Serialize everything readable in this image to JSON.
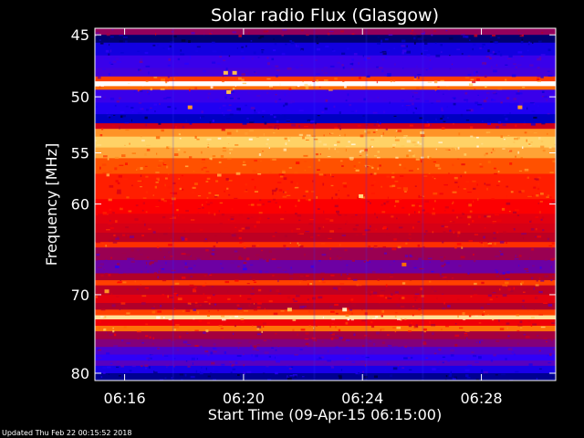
{
  "chart_data": {
    "type": "heatmap",
    "title": "Solar radio Flux (Glasgow)",
    "xlabel": "Start Time (09-Apr-15 06:15:00)",
    "ylabel": "Frequency [MHz]",
    "x_range_minutes": [
      0,
      15.5
    ],
    "x_ticks": [
      {
        "label": "06:16",
        "value": 1
      },
      {
        "label": "06:20",
        "value": 5
      },
      {
        "label": "06:24",
        "value": 9
      },
      {
        "label": "06:28",
        "value": 13
      }
    ],
    "y_range_mhz": [
      44.5,
      81
    ],
    "y_scale": "log",
    "y_ticks": [
      {
        "label": "45",
        "value": 45
      },
      {
        "label": "50",
        "value": 50
      },
      {
        "label": "55",
        "value": 55
      },
      {
        "label": "60",
        "value": 60
      },
      {
        "label": "70",
        "value": 70
      },
      {
        "label": "80",
        "value": 80
      }
    ],
    "colormap": [
      "#000033",
      "#0000c8",
      "#2a00ff",
      "#6a00a8",
      "#b0002a",
      "#ff0000",
      "#ff6a00",
      "#ffd060",
      "#ffffff"
    ],
    "bands": [
      {
        "f0": 44.5,
        "f1": 45.0,
        "level": 0.45
      },
      {
        "f0": 45.0,
        "f1": 45.6,
        "level": 0.05
      },
      {
        "f0": 45.6,
        "f1": 46.6,
        "level": 0.18
      },
      {
        "f0": 46.6,
        "f1": 47.6,
        "level": 0.28
      },
      {
        "f0": 47.6,
        "f1": 48.3,
        "level": 0.3
      },
      {
        "f0": 48.3,
        "f1": 48.7,
        "level": 0.7
      },
      {
        "f0": 48.7,
        "f1": 49.1,
        "level": 1.0
      },
      {
        "f0": 49.1,
        "f1": 49.4,
        "level": 0.75
      },
      {
        "f0": 49.4,
        "f1": 50.5,
        "level": 0.28
      },
      {
        "f0": 50.5,
        "f1": 51.5,
        "level": 0.22
      },
      {
        "f0": 51.5,
        "f1": 52.3,
        "level": 0.12
      },
      {
        "f0": 52.3,
        "f1": 52.8,
        "level": 0.55
      },
      {
        "f0": 52.8,
        "f1": 53.5,
        "level": 0.8
      },
      {
        "f0": 53.5,
        "f1": 54.5,
        "level": 0.88
      },
      {
        "f0": 54.5,
        "f1": 55.5,
        "level": 0.82
      },
      {
        "f0": 55.5,
        "f1": 57.0,
        "level": 0.72
      },
      {
        "f0": 57.0,
        "f1": 59.5,
        "level": 0.66
      },
      {
        "f0": 59.5,
        "f1": 61.0,
        "level": 0.62
      },
      {
        "f0": 61.0,
        "f1": 62.0,
        "level": 0.58
      },
      {
        "f0": 62.0,
        "f1": 63.0,
        "level": 0.56
      },
      {
        "f0": 63.0,
        "f1": 64.0,
        "level": 0.52
      },
      {
        "f0": 64.0,
        "f1": 64.6,
        "level": 0.68
      },
      {
        "f0": 64.6,
        "f1": 66.0,
        "level": 0.46
      },
      {
        "f0": 66.0,
        "f1": 67.5,
        "level": 0.38
      },
      {
        "f0": 67.5,
        "f1": 68.3,
        "level": 0.5
      },
      {
        "f0": 68.3,
        "f1": 68.9,
        "level": 0.7
      },
      {
        "f0": 68.9,
        "f1": 70.0,
        "level": 0.52
      },
      {
        "f0": 70.0,
        "f1": 71.0,
        "level": 0.58
      },
      {
        "f0": 71.0,
        "f1": 71.8,
        "level": 0.5
      },
      {
        "f0": 71.8,
        "f1": 72.5,
        "level": 0.7
      },
      {
        "f0": 72.5,
        "f1": 73.0,
        "level": 0.92
      },
      {
        "f0": 73.0,
        "f1": 73.8,
        "level": 0.6
      },
      {
        "f0": 73.8,
        "f1": 74.5,
        "level": 0.76
      },
      {
        "f0": 74.5,
        "f1": 75.5,
        "level": 0.48
      },
      {
        "f0": 75.5,
        "f1": 76.5,
        "level": 0.42
      },
      {
        "f0": 76.5,
        "f1": 77.5,
        "level": 0.32
      },
      {
        "f0": 77.5,
        "f1": 78.3,
        "level": 0.26
      },
      {
        "f0": 78.3,
        "f1": 79.0,
        "level": 0.34
      },
      {
        "f0": 79.0,
        "f1": 80.0,
        "level": 0.2
      },
      {
        "f0": 80.0,
        "f1": 81.0,
        "level": 0.08
      }
    ],
    "bursts": [
      {
        "t": 8.95,
        "f": 59.2,
        "level": 0.9
      },
      {
        "t": 10.45,
        "f": 58.5,
        "level": 0.7
      },
      {
        "t": 10.4,
        "f": 66.5,
        "level": 0.75
      },
      {
        "t": 8.4,
        "f": 71.8,
        "level": 0.95
      },
      {
        "t": 6.55,
        "f": 71.8,
        "level": 0.85
      },
      {
        "t": 4.4,
        "f": 48.0,
        "level": 0.85
      },
      {
        "t": 4.7,
        "f": 48.0,
        "level": 0.85
      },
      {
        "t": 4.5,
        "f": 49.6,
        "level": 0.85
      },
      {
        "t": 3.2,
        "f": 50.9,
        "level": 0.8
      },
      {
        "t": 14.3,
        "f": 50.9,
        "level": 0.8
      },
      {
        "t": 0.4,
        "f": 69.6,
        "level": 0.8
      }
    ]
  },
  "footer": {
    "updated_text": "Updated Thu Feb 22 00:15:52 2018"
  }
}
